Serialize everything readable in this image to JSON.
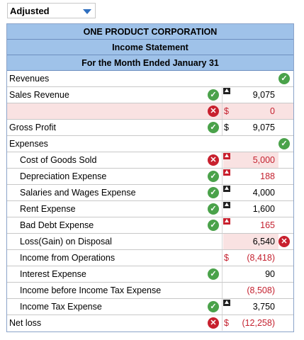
{
  "dropdown": {
    "value": "Adjusted"
  },
  "header": {
    "company": "ONE PRODUCT CORPORATION",
    "statement": "Income Statement",
    "period": "For the Month Ended January 31"
  },
  "rows": {
    "revenues": {
      "label": "Revenues"
    },
    "sales_revenue": {
      "label": "Sales Revenue",
      "amount": "9,075"
    },
    "blank": {
      "label": "",
      "currency": "$",
      "amount": "0"
    },
    "gross_profit": {
      "label": "Gross Profit",
      "currency": "$",
      "amount": "9,075"
    },
    "expenses": {
      "label": "Expenses"
    },
    "cogs": {
      "label": "Cost of Goods Sold",
      "amount": "5,000"
    },
    "depreciation": {
      "label": "Depreciation Expense",
      "amount": "188"
    },
    "salaries": {
      "label": "Salaries and Wages Expense",
      "amount": "4,000"
    },
    "rent": {
      "label": "Rent Expense",
      "amount": "1,600"
    },
    "bad_debt": {
      "label": "Bad Debt Expense",
      "amount": "165"
    },
    "loss_gain": {
      "label": "Loss(Gain) on Disposal",
      "amount": "6,540"
    },
    "income_ops": {
      "label": "Income from Operations",
      "currency": "$",
      "amount": "(8,418)"
    },
    "interest": {
      "label": "Interest Expense",
      "amount": "90"
    },
    "income_before_tax": {
      "label": "Income before Income Tax Expense",
      "amount": "(8,508)"
    },
    "income_tax": {
      "label": "Income Tax Expense",
      "amount": "3,750"
    },
    "net_loss": {
      "label": "Net loss",
      "currency": "$",
      "amount": "(12,258)"
    }
  },
  "icons": {
    "check": "✓",
    "cross": "✕"
  },
  "colors": {
    "header_bg": "#9fc2e9",
    "pink": "#f9e2e2",
    "ok": "#4aa24a",
    "bad": "#c8202e",
    "red_text": "#c4212f"
  }
}
